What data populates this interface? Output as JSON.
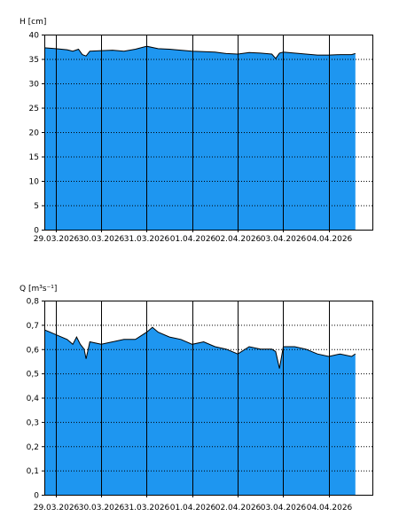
{
  "chart_data": [
    {
      "type": "area",
      "ylabel": "H [cm]",
      "ylim": [
        0,
        40
      ],
      "yticks": [
        "0",
        "5",
        "10",
        "15",
        "20",
        "25",
        "30",
        "35",
        "40"
      ],
      "xlim": [
        "2026-03-28T18:00",
        "2026-04-04T23:00"
      ],
      "xtick_labels": [
        "29.03.2026",
        "30.03.2026",
        "31.03.2026",
        "01.04.2026",
        "02.04.2026",
        "03.04.2026",
        "04.04.2026"
      ],
      "grid": "dotted horizontal, solid vertical at day boundaries",
      "fill_color": "#1e96f0",
      "series": [
        {
          "x": [
            "2026-03-28T18:00",
            "2026-03-29T00:00",
            "2026-03-29T06:00",
            "2026-03-29T09:00",
            "2026-03-29T12:00",
            "2026-03-29T14:00",
            "2026-03-29T16:00",
            "2026-03-29T18:00",
            "2026-03-30T00:00",
            "2026-03-30T06:00",
            "2026-03-30T12:00",
            "2026-03-30T18:00",
            "2026-03-31T00:00",
            "2026-03-31T06:00",
            "2026-03-31T12:00",
            "2026-03-31T18:00",
            "2026-04-01T00:00",
            "2026-04-01T06:00",
            "2026-04-01T12:00",
            "2026-04-01T18:00",
            "2026-04-02T00:00",
            "2026-04-02T06:00",
            "2026-04-02T12:00",
            "2026-04-02T18:00",
            "2026-04-02T20:00",
            "2026-04-02T22:00",
            "2026-04-03T00:00",
            "2026-04-03T06:00",
            "2026-04-03T12:00",
            "2026-04-03T18:00",
            "2026-04-04T00:00",
            "2026-04-04T06:00",
            "2026-04-04T12:00",
            "2026-04-04T14:00"
          ],
          "values": [
            37.3,
            37.1,
            36.9,
            36.6,
            37.0,
            35.9,
            35.6,
            36.6,
            36.7,
            36.8,
            36.6,
            37.0,
            37.6,
            37.1,
            37.0,
            36.8,
            36.6,
            36.5,
            36.4,
            36.1,
            36.0,
            36.3,
            36.2,
            36.0,
            35.1,
            36.2,
            36.4,
            36.2,
            36.0,
            35.8,
            35.8,
            35.9,
            35.9,
            36.1
          ]
        }
      ]
    },
    {
      "type": "area",
      "ylabel": "Q [m³s⁻¹]",
      "ylim": [
        0,
        0.8
      ],
      "yticks": [
        "0",
        "0,1",
        "0,2",
        "0,3",
        "0,4",
        "0,5",
        "0,6",
        "0,7",
        "0,8"
      ],
      "xlim": [
        "2026-03-28T18:00",
        "2026-04-04T23:00"
      ],
      "xtick_labels": [
        "29.03.2026",
        "30.03.2026",
        "31.03.2026",
        "01.04.2026",
        "02.04.2026",
        "03.04.2026",
        "04.04.2026"
      ],
      "grid": "dotted horizontal, solid vertical at day boundaries",
      "fill_color": "#1e96f0",
      "series": [
        {
          "x": [
            "2026-03-28T18:00",
            "2026-03-28T21:00",
            "2026-03-29T00:00",
            "2026-03-29T03:00",
            "2026-03-29T06:00",
            "2026-03-29T09:00",
            "2026-03-29T11:00",
            "2026-03-29T13:00",
            "2026-03-29T15:00",
            "2026-03-29T16:00",
            "2026-03-29T18:00",
            "2026-03-30T00:00",
            "2026-03-30T06:00",
            "2026-03-30T12:00",
            "2026-03-30T18:00",
            "2026-03-31T00:00",
            "2026-03-31T03:00",
            "2026-03-31T06:00",
            "2026-03-31T12:00",
            "2026-03-31T18:00",
            "2026-04-01T00:00",
            "2026-04-01T06:00",
            "2026-04-01T12:00",
            "2026-04-01T18:00",
            "2026-04-02T00:00",
            "2026-04-02T06:00",
            "2026-04-02T12:00",
            "2026-04-02T18:00",
            "2026-04-02T20:00",
            "2026-04-02T22:00",
            "2026-04-03T00:00",
            "2026-04-03T06:00",
            "2026-04-03T12:00",
            "2026-04-03T18:00",
            "2026-04-04T00:00",
            "2026-04-04T06:00",
            "2026-04-04T12:00",
            "2026-04-04T14:00"
          ],
          "values": [
            0.68,
            0.67,
            0.66,
            0.65,
            0.64,
            0.62,
            0.65,
            0.62,
            0.6,
            0.56,
            0.63,
            0.62,
            0.63,
            0.64,
            0.64,
            0.67,
            0.69,
            0.67,
            0.65,
            0.64,
            0.62,
            0.63,
            0.61,
            0.6,
            0.58,
            0.61,
            0.6,
            0.6,
            0.59,
            0.52,
            0.61,
            0.61,
            0.6,
            0.58,
            0.57,
            0.58,
            0.57,
            0.58
          ]
        }
      ]
    }
  ]
}
